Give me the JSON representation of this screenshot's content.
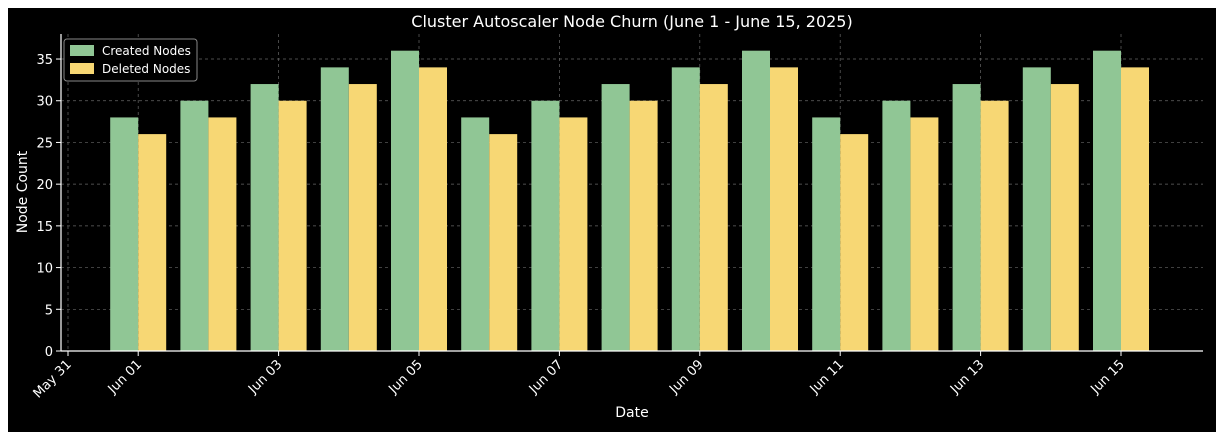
{
  "chart_data": {
    "type": "bar",
    "title": "Cluster Autoscaler Node Churn (June 1 - June 15, 2025)",
    "xlabel": "Date",
    "ylabel": "Node Count",
    "ylim": [
      0,
      38
    ],
    "yticks": [
      0,
      5,
      10,
      15,
      20,
      25,
      30,
      35
    ],
    "x_tick_labels": [
      "May 31",
      "Jun 01",
      "Jun 03",
      "Jun 05",
      "Jun 07",
      "Jun 09",
      "Jun 11",
      "Jun 13",
      "Jun 15"
    ],
    "categories": [
      "2025-06-01",
      "2025-06-02",
      "2025-06-03",
      "2025-06-04",
      "2025-06-05",
      "2025-06-06",
      "2025-06-07",
      "2025-06-08",
      "2025-06-09",
      "2025-06-10",
      "2025-06-11",
      "2025-06-12",
      "2025-06-13",
      "2025-06-14",
      "2025-06-15"
    ],
    "series": [
      {
        "name": "Created Nodes",
        "color": "#90c695",
        "values": [
          28,
          30,
          32,
          34,
          36,
          28,
          30,
          32,
          34,
          36,
          28,
          30,
          32,
          34,
          36
        ]
      },
      {
        "name": "Deleted Nodes",
        "color": "#f7d774",
        "values": [
          26,
          28,
          30,
          32,
          34,
          26,
          28,
          30,
          32,
          34,
          26,
          28,
          30,
          32,
          34
        ]
      }
    ],
    "grid": true,
    "legend": "top-left",
    "background": "#000000",
    "text_color": "#ffffff"
  }
}
